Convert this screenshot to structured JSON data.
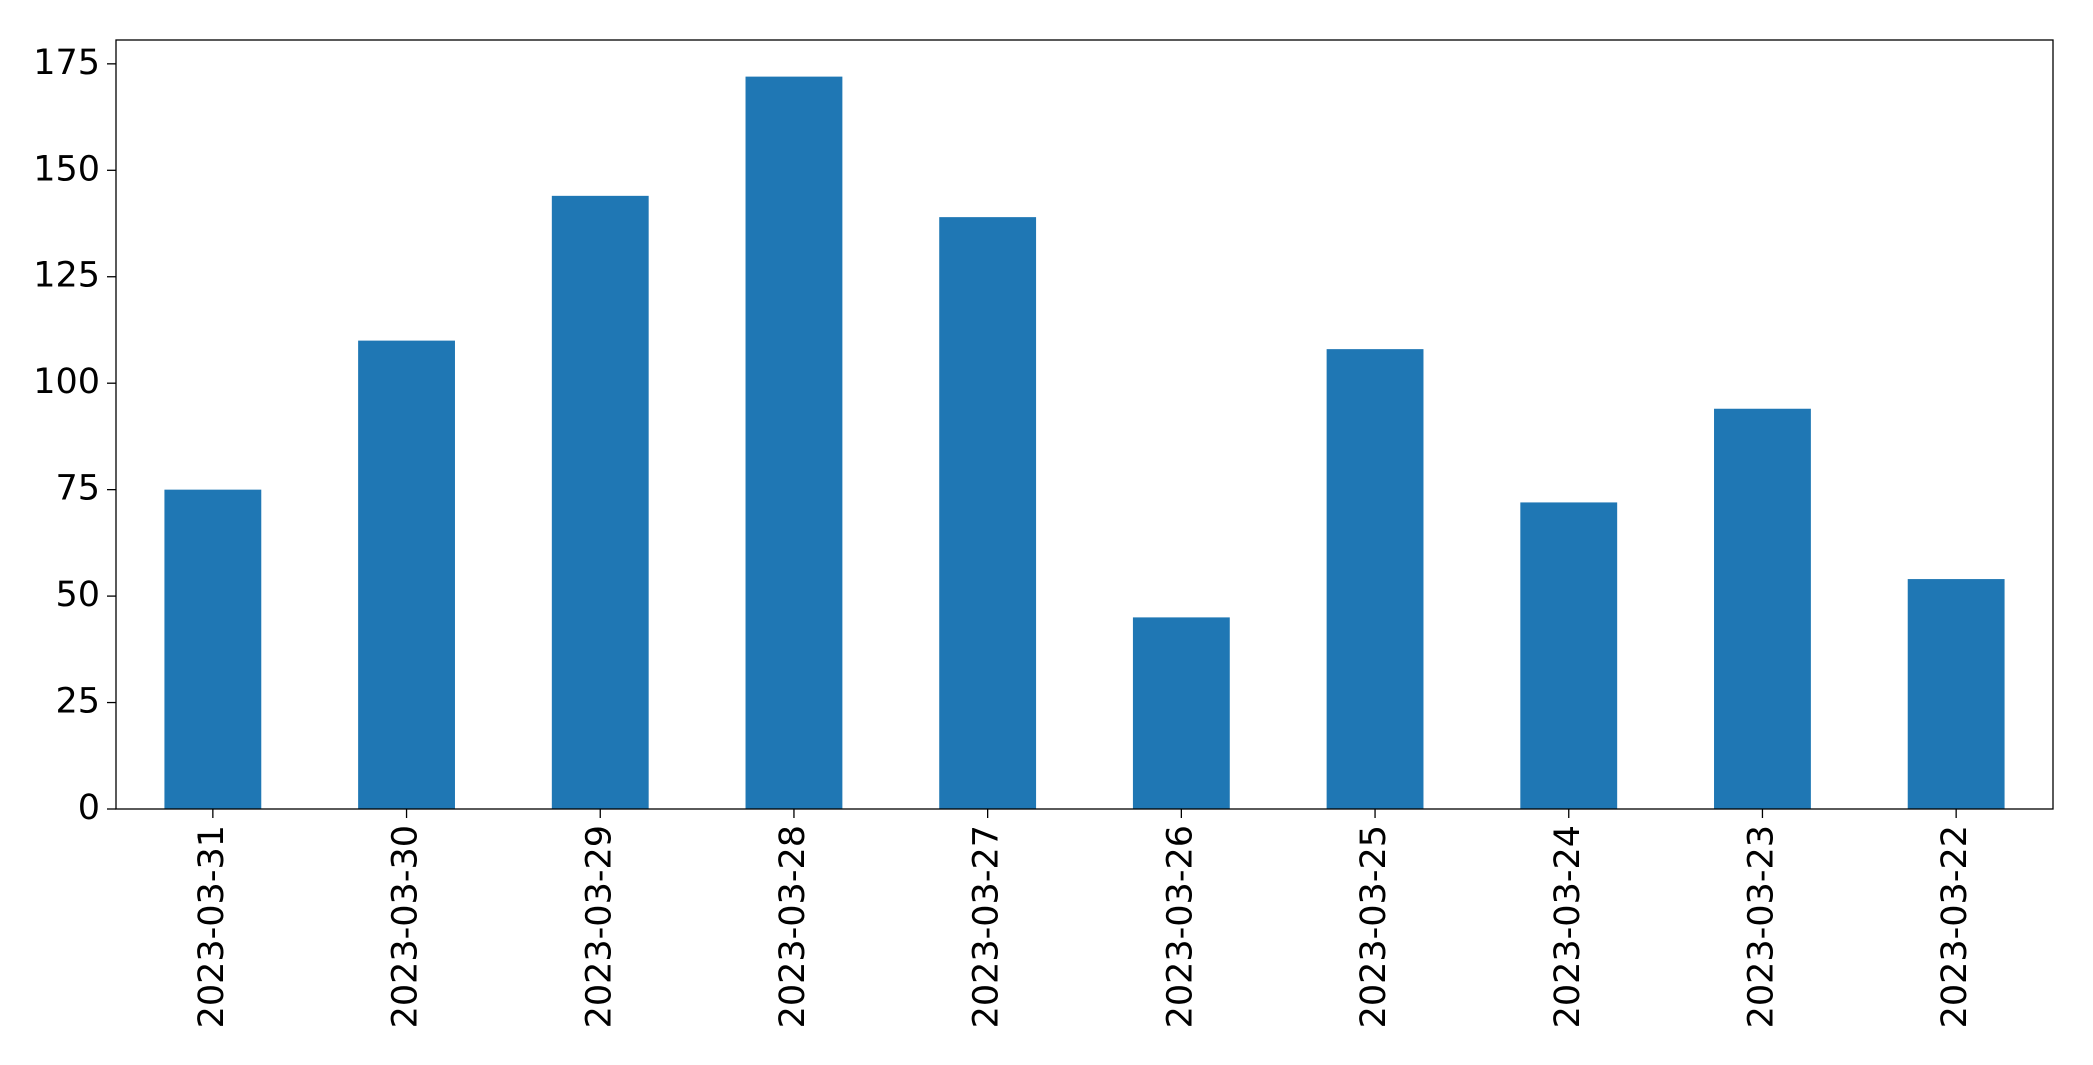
{
  "chart_data": {
    "type": "bar",
    "categories": [
      "2023-03-31",
      "2023-03-30",
      "2023-03-29",
      "2023-03-28",
      "2023-03-27",
      "2023-03-26",
      "2023-03-25",
      "2023-03-24",
      "2023-03-23",
      "2023-03-22"
    ],
    "values": [
      75,
      110,
      144,
      172,
      139,
      45,
      108,
      72,
      94,
      54
    ],
    "color": "#1f77b4",
    "ylim": [
      0,
      180.6
    ],
    "yticks": [
      0,
      25,
      50,
      75,
      100,
      125,
      150,
      175
    ],
    "grid": false
  }
}
